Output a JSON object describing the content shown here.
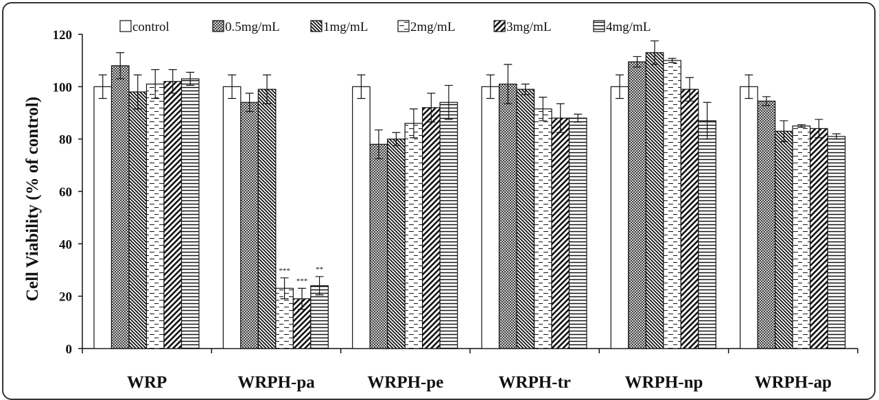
{
  "chart_data": {
    "type": "bar",
    "ylabel": "Cell Viability (% of control)",
    "xlabel": "",
    "ylim": [
      0,
      120
    ],
    "yticks": [
      "0",
      "20",
      "40",
      "60",
      "80",
      "100",
      "120"
    ],
    "categories": [
      "WRP",
      "WRPH-pa",
      "WRPH-pe",
      "WRPH-tr",
      "WRPH-np",
      "WRPH-ap"
    ],
    "legend_position": "top",
    "series": [
      {
        "name": "control",
        "pattern": "white",
        "values": [
          100,
          100,
          100,
          100,
          100,
          100
        ],
        "errors": [
          4.5,
          4.5,
          4.5,
          4.5,
          4.5,
          4.5
        ]
      },
      {
        "name": "0.5mg/mL",
        "pattern": "crosshatch",
        "values": [
          108,
          94,
          78,
          101,
          109.5,
          94.5
        ],
        "errors": [
          5,
          3.5,
          5.5,
          7.5,
          2,
          1.7
        ]
      },
      {
        "name": "1mg/mL",
        "pattern": "back-diagonal",
        "values": [
          98,
          99,
          80,
          99,
          113,
          83
        ],
        "errors": [
          6.5,
          5.5,
          2.5,
          2,
          4.5,
          4
        ]
      },
      {
        "name": "2mg/mL",
        "pattern": "dashes",
        "values": [
          101,
          23,
          86,
          91.5,
          110,
          85
        ],
        "errors": [
          5.5,
          4,
          5.5,
          4.5,
          0.8,
          0.5
        ]
      },
      {
        "name": "3mg/mL",
        "pattern": "forward-diagonal",
        "values": [
          102,
          19,
          92,
          88,
          99,
          84
        ],
        "errors": [
          4.5,
          4,
          5.5,
          5.5,
          4.5,
          3.5
        ]
      },
      {
        "name": "4mg/mL",
        "pattern": "horizontal",
        "values": [
          103,
          24,
          94,
          88,
          87,
          81
        ],
        "errors": [
          2.5,
          3.5,
          6.5,
          1.5,
          7,
          1
        ]
      }
    ],
    "annotations": [
      {
        "category": "WRPH-pa",
        "series": "2mg/mL",
        "text": "***"
      },
      {
        "category": "WRPH-pa",
        "series": "3mg/mL",
        "text": "***"
      },
      {
        "category": "WRPH-pa",
        "series": "4mg/mL",
        "text": "**"
      }
    ]
  }
}
